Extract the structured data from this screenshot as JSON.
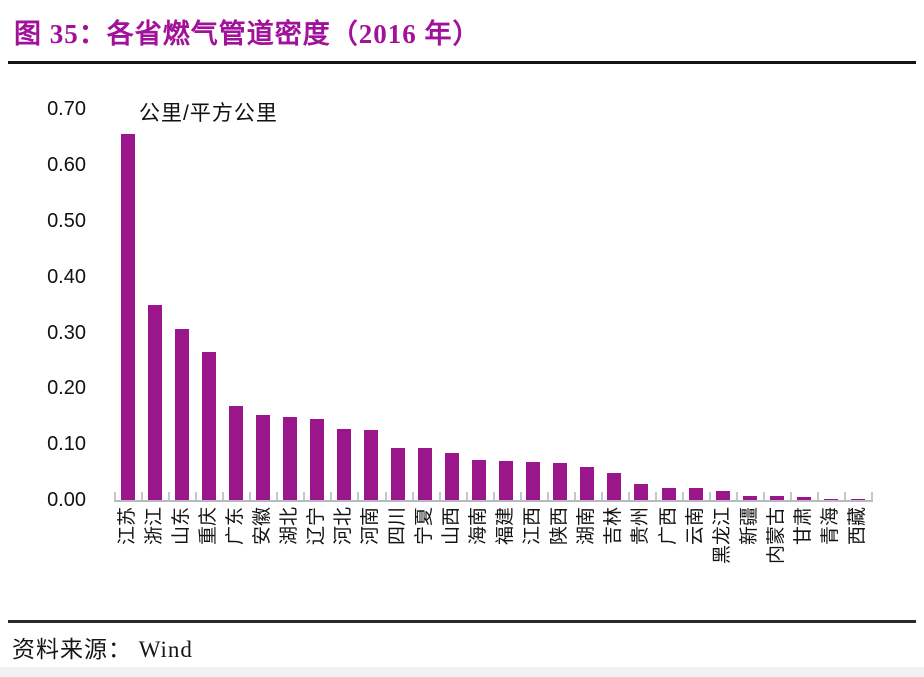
{
  "header": {
    "title": "图 35：各省燃气管道密度（2016 年）"
  },
  "chart_data": {
    "type": "bar",
    "title": "各省燃气管道密度（2016 年）",
    "unit_label": "公里/平方公里",
    "categories": [
      "江苏",
      "浙江",
      "山东",
      "重庆",
      "广东",
      "安徽",
      "湖北",
      "辽宁",
      "河北",
      "河南",
      "四川",
      "宁夏",
      "山西",
      "海南",
      "福建",
      "江西",
      "陕西",
      "湖南",
      "吉林",
      "贵州",
      "广西",
      "云南",
      "黑龙江",
      "新疆",
      "内蒙古",
      "甘肃",
      "青海",
      "西藏"
    ],
    "values": [
      0.656,
      0.349,
      0.306,
      0.266,
      0.169,
      0.152,
      0.149,
      0.146,
      0.128,
      0.125,
      0.094,
      0.093,
      0.085,
      0.072,
      0.07,
      0.068,
      0.067,
      0.059,
      0.048,
      0.028,
      0.022,
      0.021,
      0.017,
      0.007,
      0.007,
      0.006,
      0.002,
      0.001
    ],
    "xlabel": "",
    "ylabel": "公里/平方公里",
    "ylim": [
      0.0,
      0.7
    ],
    "ytick_labels": [
      "0.00",
      "0.10",
      "0.20",
      "0.30",
      "0.40",
      "0.50",
      "0.60",
      "0.70"
    ],
    "grid": "off",
    "legend": "none",
    "bar_color": "#9B168B",
    "axis_color": "#b9b9c1",
    "title_color": "#A2119A"
  },
  "footer": {
    "source": "资料来源： Wind"
  }
}
